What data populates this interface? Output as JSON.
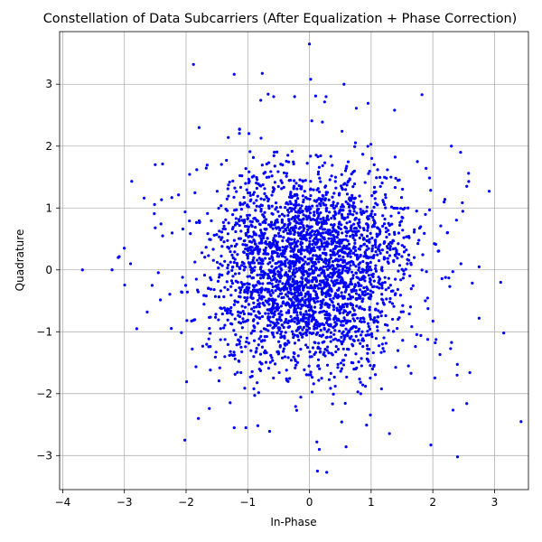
{
  "chart_data": {
    "type": "scatter",
    "title": "Constellation of Data Subcarriers (After Equalization + Phase Correction)",
    "xlabel": "In-Phase",
    "ylabel": "Quadrature",
    "xlim": [
      -4.05,
      3.55
    ],
    "ylim": [
      -3.55,
      3.85
    ],
    "xticks": [
      -4,
      -3,
      -2,
      -1,
      0,
      1,
      2,
      3
    ],
    "yticks": [
      -3,
      -2,
      -1,
      0,
      1,
      2,
      3
    ],
    "grid": true,
    "point_color": "#0000ff",
    "distribution": {
      "description_values": "approx. 3000 points, roughly circular Gaussian-like cloud centered at origin with dense lobes near (±0.6, ±0.6)",
      "std": 0.85
    },
    "points": {
      "outliers": [
        [
          -3.68,
          0.0
        ],
        [
          -3.2,
          0.0
        ],
        [
          -3.1,
          0.2
        ],
        [
          -2.9,
          0.1
        ],
        [
          -2.8,
          -0.95
        ],
        [
          -1.88,
          3.32
        ],
        [
          -1.22,
          3.16
        ],
        [
          0.0,
          3.65
        ],
        [
          0.02,
          3.08
        ],
        [
          0.56,
          3.0
        ],
        [
          0.27,
          2.8
        ],
        [
          -0.67,
          2.84
        ],
        [
          -0.58,
          2.8
        ],
        [
          0.1,
          2.81
        ],
        [
          1.38,
          2.58
        ],
        [
          3.1,
          -0.2
        ],
        [
          3.15,
          -1.02
        ],
        [
          2.75,
          -0.78
        ],
        [
          2.75,
          0.05
        ],
        [
          2.6,
          -1.66
        ],
        [
          2.55,
          -2.16
        ],
        [
          2.4,
          -3.02
        ],
        [
          0.13,
          -3.25
        ],
        [
          0.28,
          -3.27
        ],
        [
          0.16,
          -2.9
        ],
        [
          0.12,
          -2.78
        ],
        [
          -2.02,
          -2.75
        ],
        [
          -1.8,
          -2.4
        ],
        [
          -1.22,
          -2.55
        ],
        [
          -1.03,
          -2.55
        ],
        [
          2.3,
          2.0
        ],
        [
          2.45,
          1.9
        ],
        [
          2.55,
          1.35
        ],
        [
          2.58,
          1.56
        ],
        [
          -2.68,
          1.16
        ],
        [
          -2.5,
          1.7
        ],
        [
          -2.5,
          0.68
        ],
        [
          -2.38,
          0.55
        ],
        [
          -2.63,
          -0.68
        ],
        [
          -2.55,
          -0.25
        ]
      ],
      "cluster_centers": [
        [
          -0.6,
          0.6
        ],
        [
          0.6,
          0.6
        ],
        [
          -0.6,
          -0.6
        ],
        [
          0.6,
          -0.6
        ],
        [
          0.0,
          0.0
        ]
      ],
      "cluster_spread": 0.55,
      "count": 3000
    }
  }
}
